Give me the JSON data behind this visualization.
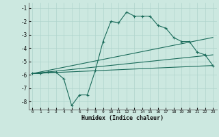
{
  "xlabel": "Humidex (Indice chaleur)",
  "bg_color": "#cce8e0",
  "line_color": "#1a6b5a",
  "grid_color_major": "#b0d4cc",
  "grid_color_minor": "#c8e4de",
  "xlim": [
    -0.5,
    23.5
  ],
  "ylim": [
    -8.6,
    -0.6
  ],
  "xticks": [
    0,
    1,
    2,
    3,
    4,
    5,
    6,
    7,
    8,
    9,
    10,
    11,
    12,
    13,
    14,
    15,
    16,
    17,
    18,
    19,
    20,
    21,
    22,
    23
  ],
  "yticks": [
    -8,
    -7,
    -6,
    -5,
    -4,
    -3,
    -2,
    -1
  ],
  "line1_x": [
    0,
    1,
    2,
    3,
    4,
    5,
    6,
    7,
    8,
    9,
    10,
    11,
    12,
    13,
    14,
    15,
    16,
    17,
    18,
    19,
    20,
    21,
    22,
    23
  ],
  "line1_y": [
    -5.9,
    -5.9,
    -5.8,
    -5.8,
    -6.3,
    -8.3,
    -7.5,
    -7.5,
    -5.7,
    -3.5,
    -2.0,
    -2.1,
    -1.3,
    -1.6,
    -1.6,
    -1.6,
    -2.3,
    -2.5,
    -3.2,
    -3.5,
    -3.5,
    -4.3,
    -4.5,
    -5.3
  ],
  "line2_x": [
    0,
    23
  ],
  "line2_y": [
    -5.9,
    -5.3
  ],
  "line3_x": [
    0,
    23
  ],
  "line3_y": [
    -5.9,
    -4.5
  ],
  "line4_x": [
    0,
    23
  ],
  "line4_y": [
    -5.9,
    -3.2
  ]
}
